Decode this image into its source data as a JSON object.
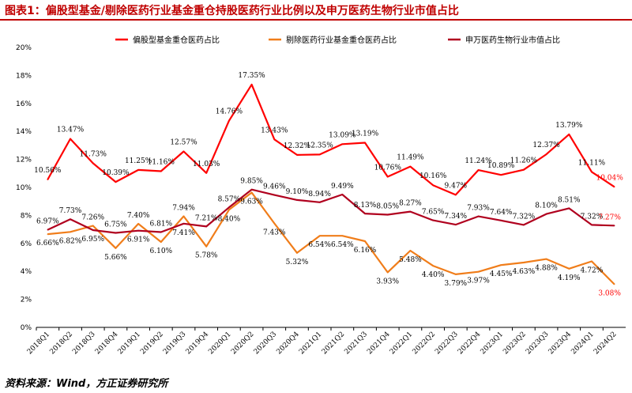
{
  "title": "图表1：偏股型基金/剔除医药行业基金重仓持股医药行业比例以及申万医药生物行业市值占比",
  "source": "资料来源：Wind，方正证券研究所",
  "chart_data": {
    "type": "line",
    "categories": [
      "2018Q1",
      "2018Q2",
      "2018Q3",
      "2018Q4",
      "2019Q1",
      "2019Q2",
      "2019Q3",
      "2019Q4",
      "2020Q1",
      "2020Q2",
      "2020Q3",
      "2020Q4",
      "2021Q1",
      "2021Q2",
      "2021Q3",
      "2021Q4",
      "2022Q1",
      "2022Q2",
      "2022Q3",
      "2022Q4",
      "2023Q1",
      "2023Q2",
      "2023Q3",
      "2023Q4",
      "2024Q1",
      "2024Q2"
    ],
    "ylim": [
      0,
      20
    ],
    "yticks": [
      "0%",
      "2%",
      "4%",
      "6%",
      "8%",
      "10%",
      "12%",
      "14%",
      "16%",
      "18%",
      "20%"
    ],
    "legend_position": "top",
    "grid": false,
    "series": [
      {
        "name": "偏股型基金重仓医药占比",
        "color": "#ff0000",
        "values": [
          10.56,
          13.47,
          11.73,
          10.39,
          11.25,
          11.16,
          12.57,
          11.03,
          14.76,
          17.35,
          13.43,
          12.32,
          12.35,
          13.09,
          13.19,
          10.76,
          11.49,
          10.16,
          9.47,
          11.24,
          10.89,
          11.26,
          12.37,
          13.79,
          11.11,
          10.04
        ],
        "labels": [
          "10.56%",
          "13.47%",
          "11.73%",
          "10.39%",
          "11.25%",
          "11.16%",
          "12.57%",
          "11.03%",
          "14.76%",
          "17.35%",
          "13.43%",
          "12.32%",
          "12.35%",
          "13.09%",
          "13.19%",
          "10.76%",
          "11.49%",
          "10.16%",
          "9.47%",
          "11.24%",
          "10.89%",
          "11.26%",
          "12.37%",
          "13.79%",
          "11.11%",
          "10.04%"
        ]
      },
      {
        "name": "剔除医药行业基金重仓医药占比",
        "color": "#f07d1a",
        "values": [
          6.66,
          6.82,
          7.26,
          5.66,
          7.4,
          6.1,
          7.94,
          5.78,
          8.4,
          9.63,
          7.43,
          5.32,
          6.54,
          6.54,
          6.16,
          3.93,
          5.48,
          4.4,
          3.79,
          3.97,
          4.45,
          4.63,
          4.88,
          4.19,
          4.72,
          3.08
        ],
        "labels": [
          "6.66%",
          "6.82%",
          "7.26%",
          "5.66%",
          "7.40%",
          "6.10%",
          "7.94%",
          "5.78%",
          "8.40%",
          "9.63%",
          "7.43%",
          "5.32%",
          "6.54%",
          "6.54%",
          "6.16%",
          "3.93%",
          "5.48%",
          "4.40%",
          "3.79%",
          "3.97%",
          "4.45%",
          "4.63%",
          "4.88%",
          "4.19%",
          "4.72%",
          "3.08%"
        ]
      },
      {
        "name": "申万医药生物行业市值占比",
        "color": "#b0001e",
        "values": [
          6.97,
          7.73,
          6.95,
          6.75,
          6.91,
          6.81,
          7.41,
          7.21,
          8.57,
          9.85,
          9.46,
          9.1,
          8.94,
          9.49,
          8.13,
          8.05,
          8.27,
          7.65,
          7.34,
          7.93,
          7.64,
          7.32,
          8.1,
          8.51,
          7.32,
          7.27
        ],
        "labels": [
          "6.97%",
          "7.73%",
          "6.95%",
          "6.75%",
          "6.91%",
          "6.81%",
          "7.41%",
          "7.21%",
          "8.57%",
          "9.85%",
          "9.46%",
          "9.10%",
          "8.94%",
          "9.49%",
          "8.13%",
          "8.05%",
          "8.27%",
          "7.65%",
          "7.34%",
          "7.93%",
          "7.64%",
          "7.32%",
          "8.10%",
          "8.51%",
          "7.32%",
          "7.27%"
        ]
      }
    ]
  }
}
